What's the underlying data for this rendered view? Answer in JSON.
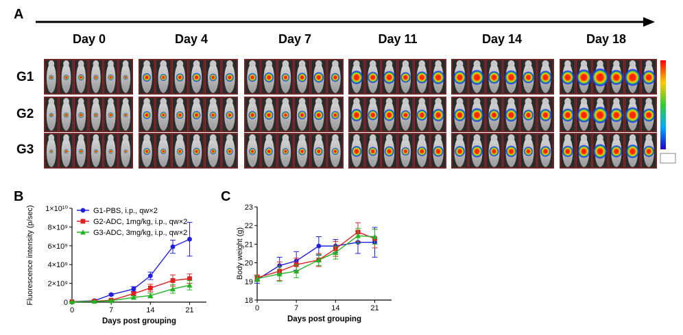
{
  "panels": {
    "a": "A",
    "b": "B",
    "c": "C"
  },
  "days": [
    "Day 0",
    "Day 4",
    "Day 7",
    "Day 11",
    "Day 14",
    "Day 18"
  ],
  "groups": [
    "G1",
    "G2",
    "G3"
  ],
  "colors": {
    "g1": "#1f1fe0",
    "g2": "#e01f1f",
    "g3": "#22b322"
  },
  "chart_data": [
    {
      "type": "line",
      "panel": "B",
      "xlabel": "Days post grouping",
      "ylabel": "Fluorescence intensity (p/sec)",
      "xlim": [
        0,
        24
      ],
      "ylim": [
        0,
        10000000000
      ],
      "xticks": [
        0,
        7,
        14,
        21
      ],
      "yticks": [
        0,
        2000000000,
        4000000000,
        6000000000,
        8000000000,
        10000000000
      ],
      "ytick_labels": [
        "0",
        "2×10⁹",
        "4×10⁹",
        "6×10⁹",
        "8×10⁹",
        "1×10¹⁰"
      ],
      "legend_position": "top-left",
      "series": [
        {
          "name": "G1-PBS, i.p., qw×2",
          "color": "#1f1fe0",
          "marker": "circle",
          "x": [
            0,
            4,
            7,
            11,
            14,
            18,
            21
          ],
          "y": [
            50000000,
            150000000,
            800000000,
            1400000000,
            2800000000,
            5900000000,
            6700000000
          ],
          "err": [
            20000000,
            60000000,
            100000000,
            250000000,
            400000000,
            700000000,
            1800000000
          ]
        },
        {
          "name": "G2-ADC, 1mg/kg, i.p., qw×2",
          "color": "#e01f1f",
          "marker": "square",
          "x": [
            0,
            4,
            7,
            11,
            14,
            18,
            21
          ],
          "y": [
            40000000,
            100000000,
            200000000,
            900000000,
            1500000000,
            2300000000,
            2500000000
          ],
          "err": [
            20000000,
            40000000,
            80000000,
            200000000,
            400000000,
            600000000,
            500000000
          ]
        },
        {
          "name": "G3-ADC, 3mg/kg, i.p., qw×2",
          "color": "#22b322",
          "marker": "triangle",
          "x": [
            0,
            4,
            7,
            11,
            14,
            18,
            21
          ],
          "y": [
            30000000,
            80000000,
            150000000,
            500000000,
            700000000,
            1400000000,
            1800000000
          ],
          "err": [
            20000000,
            30000000,
            60000000,
            150000000,
            250000000,
            450000000,
            500000000
          ]
        }
      ]
    },
    {
      "type": "line",
      "panel": "C",
      "xlabel": "Days post grouping",
      "ylabel": "Body weight (g)",
      "xlim": [
        0,
        24
      ],
      "ylim": [
        18,
        23
      ],
      "xticks": [
        0,
        7,
        14,
        21
      ],
      "yticks": [
        18,
        19,
        20,
        21,
        22,
        23
      ],
      "series": [
        {
          "name": "G1-PBS, i.p., qw×2",
          "color": "#1f1fe0",
          "marker": "circle",
          "x": [
            0,
            4,
            7,
            11,
            14,
            18,
            21
          ],
          "y": [
            19.1,
            19.85,
            20.1,
            20.9,
            20.9,
            21.1,
            21.1
          ],
          "err": [
            0.2,
            0.45,
            0.5,
            0.5,
            0.35,
            0.6,
            0.8
          ]
        },
        {
          "name": "G2-ADC, 1mg/kg, i.p., qw×2",
          "color": "#e01f1f",
          "marker": "square",
          "x": [
            0,
            4,
            7,
            11,
            14,
            18,
            21
          ],
          "y": [
            19.2,
            19.55,
            19.9,
            20.15,
            20.75,
            21.65,
            21.3
          ],
          "err": [
            0.15,
            0.5,
            0.35,
            0.35,
            0.4,
            0.5,
            0.5
          ]
        },
        {
          "name": "G3-ADC, 3mg/kg, i.p., qw×2",
          "color": "#22b322",
          "marker": "triangle",
          "x": [
            0,
            4,
            7,
            11,
            14,
            18,
            21
          ],
          "y": [
            19.15,
            19.4,
            19.55,
            20.15,
            20.55,
            21.45,
            21.4
          ],
          "err": [
            0.15,
            0.4,
            0.35,
            0.3,
            0.35,
            0.4,
            0.4
          ]
        }
      ]
    }
  ]
}
